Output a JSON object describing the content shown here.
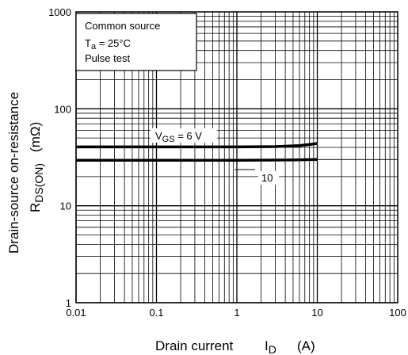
{
  "chart_data": {
    "type": "line",
    "x_scale": "log",
    "y_scale": "log",
    "xlim": [
      0.01,
      100
    ],
    "ylim": [
      1,
      1000
    ],
    "grid": true,
    "x_ticks": [
      "0.01",
      "0.1",
      "1",
      "10",
      "100"
    ],
    "y_ticks": [
      "1",
      "10",
      "100",
      "1000"
    ],
    "xlabel": {
      "main": "Drain current",
      "symbol": "I",
      "subscript": "D",
      "unit": "(A)"
    },
    "ylabel": {
      "main": "Drain-source on-resistance",
      "symbol": "R",
      "subscript": "DS(ON)",
      "unit": "(mΩ)"
    },
    "conditions": {
      "line1": "Common source",
      "line2_symbol": "T",
      "line2_subscript": "a",
      "line2_rest": " = 25°C",
      "line3": "Pulse test"
    },
    "series": [
      {
        "label_symbol": "V",
        "label_subscript": "GS",
        "label_rest": " = 6 V",
        "x": [
          0.01,
          0.1,
          1,
          3,
          6,
          8,
          10
        ],
        "y": [
          40.5,
          40.5,
          40.5,
          40.8,
          41.8,
          42.8,
          44
        ]
      },
      {
        "label_rest": "10",
        "x": [
          0.01,
          0.1,
          1,
          3,
          6,
          10
        ],
        "y": [
          29.5,
          29.5,
          29.5,
          29.6,
          29.8,
          30
        ]
      }
    ]
  }
}
